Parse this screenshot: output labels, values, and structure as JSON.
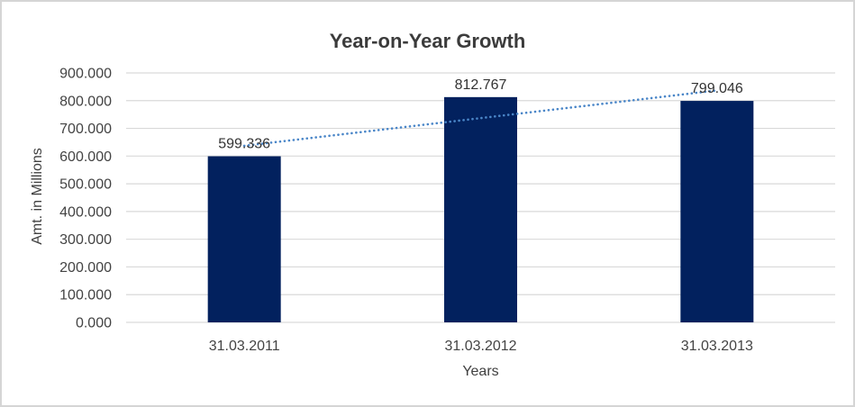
{
  "window": {
    "background": "#FFFFFF",
    "border_color": "#D5D5D5"
  },
  "chart_data": {
    "type": "bar",
    "title": "Year-on-Year Growth",
    "xlabel": "Years",
    "ylabel": "Amt. in Millions",
    "categories": [
      "31.03.2011",
      "31.03.2012",
      "31.03.2013"
    ],
    "series": [
      {
        "name": "Amt. in Millions",
        "values": [
          599.336,
          812.767,
          799.046
        ]
      }
    ],
    "value_labels": [
      "599.336",
      "812.767",
      "799.046"
    ],
    "ylim": [
      0,
      900
    ],
    "y_tick_step": 100,
    "y_tick_labels": [
      "0.000",
      "100.000",
      "200.000",
      "300.000",
      "400.000",
      "500.000",
      "600.000",
      "700.000",
      "800.000",
      "900.000"
    ],
    "grid": "horizontal",
    "legend": "none",
    "colors": {
      "bar": "#02215E",
      "gridline": "#D9D9D9",
      "tick_label": "#444444",
      "data_label": "#333333",
      "title": "#3B3B3B"
    },
    "trendline": {
      "type": "linear",
      "style": "dotted",
      "color": "#4A86C8"
    }
  }
}
